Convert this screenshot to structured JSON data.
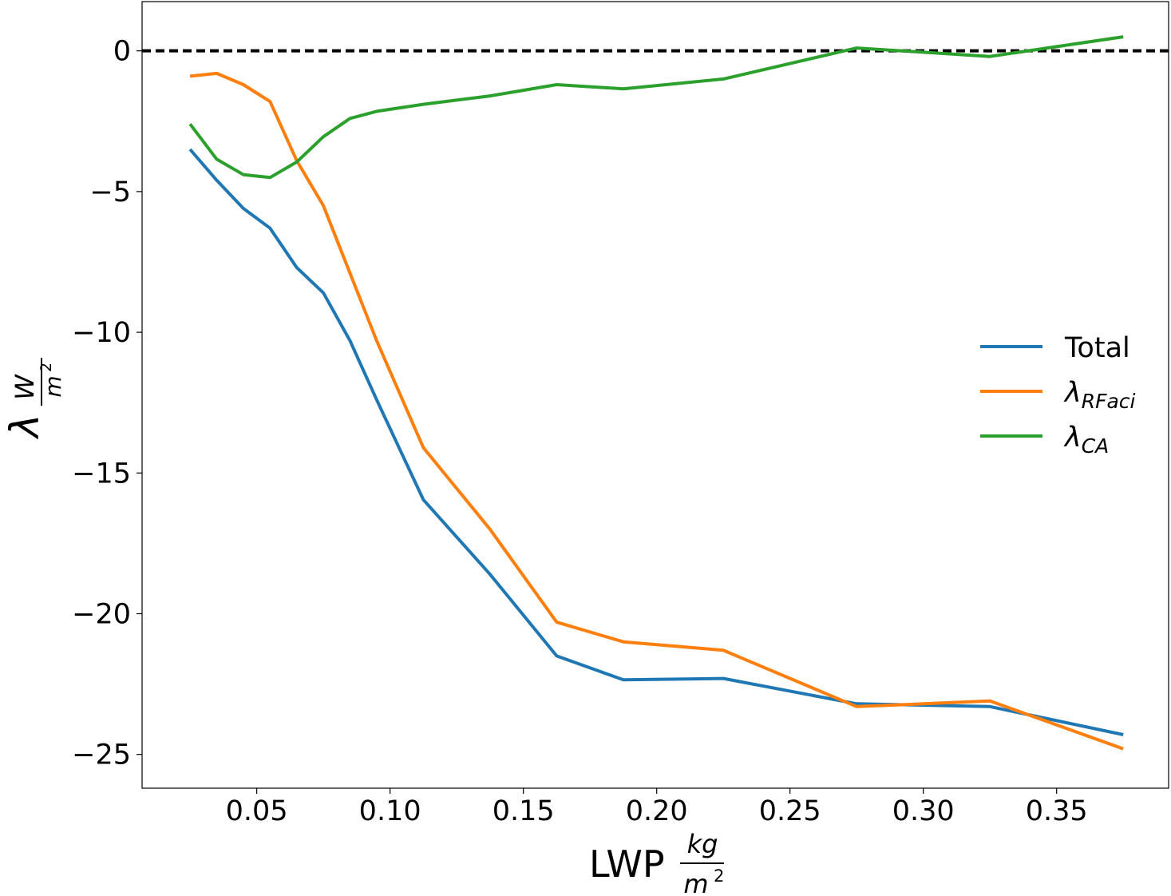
{
  "chart_data": {
    "type": "line",
    "xlabel": {
      "text": "LWP",
      "unit_numerator": "kg",
      "unit_denominator": "m",
      "unit_power": "2"
    },
    "ylabel": {
      "text": "λ",
      "unit_numerator": "W",
      "unit_denominator": "m",
      "unit_power": "2"
    },
    "xlim": [
      0.007,
      0.392
    ],
    "ylim": [
      -26.2,
      1.75
    ],
    "xticks": [
      0.05,
      0.1,
      0.15,
      0.2,
      0.25,
      0.3,
      0.35
    ],
    "xtick_labels": [
      "0.05",
      "0.10",
      "0.15",
      "0.20",
      "0.25",
      "0.30",
      "0.35"
    ],
    "yticks": [
      0,
      -5,
      -10,
      -15,
      -20,
      -25
    ],
    "ytick_labels": [
      "0",
      "−5",
      "−10",
      "−15",
      "−20",
      "−25"
    ],
    "grid": false,
    "legend_position": "center-right",
    "reference_line": {
      "y": 0,
      "style": "dashed",
      "color": "#000000"
    },
    "series": [
      {
        "name": "Total",
        "color": "#1f77b4",
        "x": [
          0.025,
          0.035,
          0.045,
          0.055,
          0.065,
          0.075,
          0.085,
          0.095,
          0.1125,
          0.1375,
          0.1625,
          0.1875,
          0.225,
          0.275,
          0.325,
          0.375
        ],
        "y": [
          -3.5,
          -4.6,
          -5.6,
          -6.3,
          -7.7,
          -8.6,
          -10.3,
          -12.4,
          -15.95,
          -18.6,
          -21.5,
          -22.35,
          -22.3,
          -23.2,
          -23.3,
          -24.3
        ]
      },
      {
        "name": "λRFaci",
        "label_base": "λ",
        "label_sub": "RFaci",
        "color": "#ff7f0e",
        "x": [
          0.025,
          0.035,
          0.045,
          0.055,
          0.065,
          0.075,
          0.085,
          0.095,
          0.1125,
          0.1375,
          0.1625,
          0.1875,
          0.225,
          0.275,
          0.325,
          0.375
        ],
        "y": [
          -0.9,
          -0.8,
          -1.2,
          -1.8,
          -3.9,
          -5.5,
          -7.9,
          -10.3,
          -14.1,
          -17.0,
          -20.3,
          -21.0,
          -21.3,
          -23.3,
          -23.1,
          -24.8
        ]
      },
      {
        "name": "λCA",
        "label_base": "λ",
        "label_sub": "CA",
        "color": "#2ca02c",
        "x": [
          0.025,
          0.035,
          0.045,
          0.055,
          0.065,
          0.075,
          0.085,
          0.095,
          0.1125,
          0.1375,
          0.1625,
          0.1875,
          0.225,
          0.275,
          0.325,
          0.375
        ],
        "y": [
          -2.6,
          -3.85,
          -4.4,
          -4.5,
          -3.95,
          -3.05,
          -2.4,
          -2.15,
          -1.9,
          -1.6,
          -1.2,
          -1.35,
          -1.0,
          0.1,
          -0.2,
          0.5
        ]
      }
    ]
  }
}
